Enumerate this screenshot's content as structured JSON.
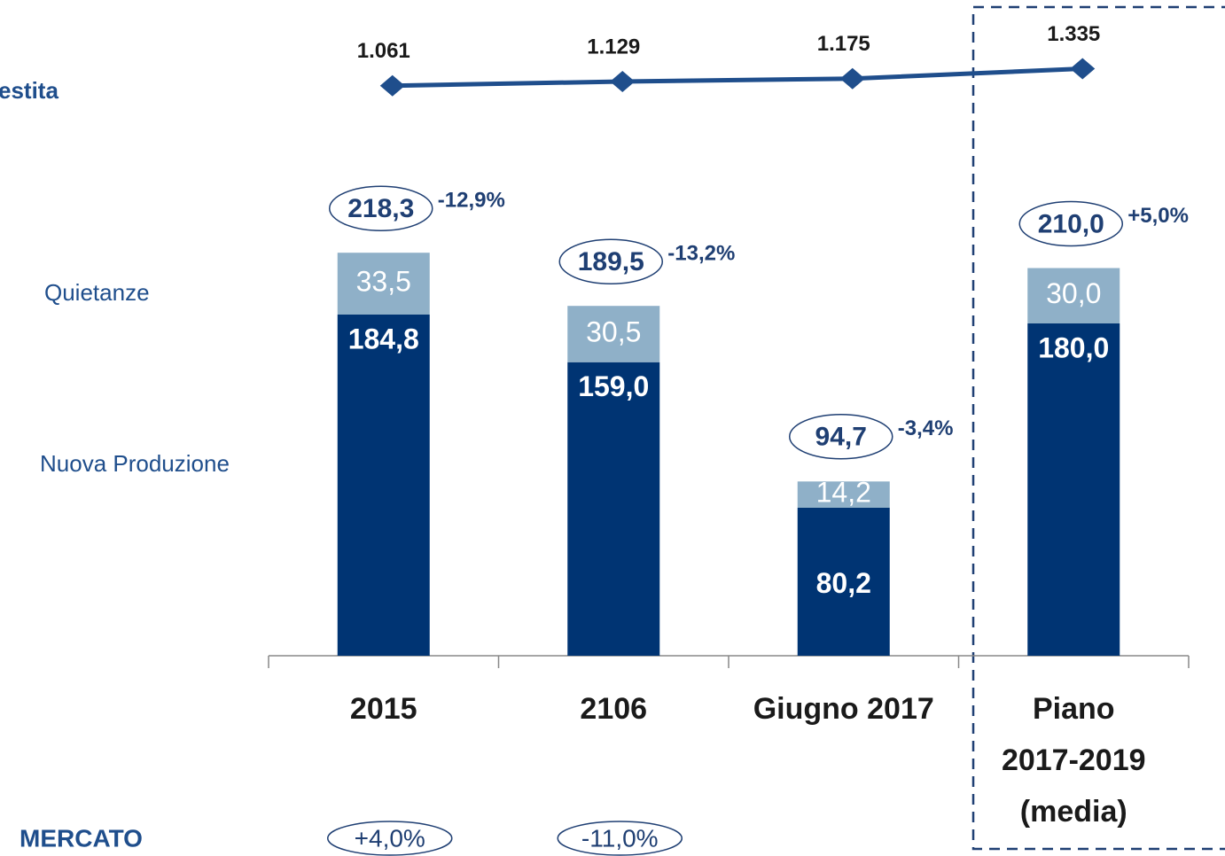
{
  "chart_data": {
    "type": "bar",
    "stacked": true,
    "categories": [
      "2015",
      "2106",
      "Giugno 2017",
      "Piano 2017-2019 (media)"
    ],
    "series": [
      {
        "name": "Nuova Produzione",
        "color": "#003473",
        "values": [
          184.8,
          159.0,
          80.2,
          180.0
        ],
        "value_labels": [
          "184,8",
          "159,0",
          "80,2",
          "180,0"
        ]
      },
      {
        "name": "Quietanze",
        "color": "#8fb0c8",
        "values": [
          33.5,
          30.5,
          14.2,
          30.0
        ],
        "value_labels": [
          "33,5",
          "30,5",
          "14,2",
          "30,0"
        ]
      }
    ],
    "totals": {
      "values": [
        218.3,
        189.5,
        94.7,
        210.0
      ],
      "value_labels": [
        "218,3",
        "189,5",
        "94,7",
        "210,0"
      ]
    },
    "growth": {
      "values": [
        -12.9,
        -13.2,
        -3.4,
        5.0
      ],
      "value_labels": [
        "-12,9%",
        "-13,2%",
        "-3,4%",
        "+5,0%"
      ]
    },
    "line": {
      "name": "estita",
      "color": "#1f4e8c",
      "axis": "y2",
      "values": [
        1061,
        1129,
        1175,
        1335
      ],
      "value_labels": [
        "1.061",
        "1.129",
        "1.175",
        "1.335"
      ]
    },
    "market": {
      "name": "MERCATO",
      "values": [
        4.0,
        -11.0
      ],
      "value_labels": [
        "+4,0%",
        "-11,0%"
      ]
    },
    "ylim": [
      0,
      240
    ],
    "y2lim": [
      800,
      1400
    ]
  }
}
